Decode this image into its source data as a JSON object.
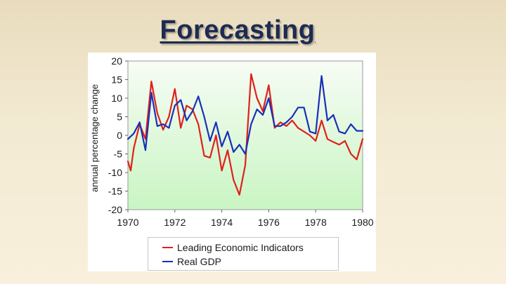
{
  "slide": {
    "title": "Forecasting"
  },
  "chart_data": {
    "type": "line",
    "title": "Forecasting",
    "xlabel": "",
    "ylabel": "annual percentage change",
    "xlim": [
      1970,
      1980
    ],
    "ylim": [
      -20,
      20
    ],
    "x_ticks": [
      "1970",
      "1972",
      "1974",
      "1976",
      "1978",
      "1980"
    ],
    "x_tick_values": [
      1970,
      1972,
      1974,
      1976,
      1978,
      1980
    ],
    "y_ticks": [
      "20",
      "15",
      "10",
      "5",
      "0",
      "-5",
      "-10",
      "-15",
      "-20"
    ],
    "y_tick_values": [
      20,
      15,
      10,
      5,
      0,
      -5,
      -10,
      -15,
      -20
    ],
    "grid": false,
    "legend_position": "below",
    "series": [
      {
        "name": "Leading Economic Indicators",
        "color": "#e0201c",
        "x": [
          1970.0,
          1970.12,
          1970.25,
          1970.5,
          1970.75,
          1971.0,
          1971.25,
          1971.5,
          1971.75,
          1972.0,
          1972.25,
          1972.5,
          1972.75,
          1973.0,
          1973.25,
          1973.5,
          1973.75,
          1974.0,
          1974.25,
          1974.5,
          1974.75,
          1975.0,
          1975.25,
          1975.5,
          1975.75,
          1976.0,
          1976.25,
          1976.5,
          1976.75,
          1977.0,
          1977.25,
          1977.5,
          1977.75,
          1978.0,
          1978.25,
          1978.5,
          1978.75,
          1979.0,
          1979.25,
          1979.5,
          1979.75,
          1980.0
        ],
        "values": [
          -7,
          -9.5,
          -3.5,
          3,
          -1,
          14.5,
          6,
          1.5,
          5,
          12.5,
          2,
          8,
          7,
          3,
          -5.5,
          -6,
          0,
          -9.5,
          -4,
          -12,
          -16,
          -8,
          16.5,
          10,
          6.5,
          13.5,
          2,
          3.5,
          2.5,
          4,
          2,
          1,
          0,
          -1.5,
          4,
          -1,
          -1.8,
          -2.5,
          -1.5,
          -5,
          -6.5,
          -1
        ]
      },
      {
        "name": "Real GDP",
        "color": "#1a2fb8",
        "x": [
          1970.0,
          1970.25,
          1970.5,
          1970.75,
          1971.0,
          1971.25,
          1971.5,
          1971.75,
          1972.0,
          1972.25,
          1972.5,
          1972.75,
          1973.0,
          1973.25,
          1973.5,
          1973.75,
          1974.0,
          1974.25,
          1974.5,
          1974.75,
          1975.0,
          1975.25,
          1975.5,
          1975.75,
          1976.0,
          1976.25,
          1976.5,
          1976.75,
          1977.0,
          1977.25,
          1977.5,
          1977.75,
          1978.0,
          1978.25,
          1978.5,
          1978.75,
          1979.0,
          1979.25,
          1979.5,
          1979.75,
          1980.0
        ],
        "values": [
          -1,
          0.5,
          3.5,
          -4,
          11.5,
          2.5,
          3,
          2,
          8,
          9.5,
          4,
          6.5,
          10.5,
          5,
          -1.5,
          3.5,
          -3,
          1,
          -4.5,
          -2.5,
          -5,
          3,
          7,
          5.5,
          10,
          2.5,
          2.5,
          3.5,
          5,
          7.5,
          7.5,
          1,
          0.5,
          16,
          4,
          5.5,
          1,
          0.5,
          3,
          1.2,
          1.2
        ]
      }
    ]
  }
}
